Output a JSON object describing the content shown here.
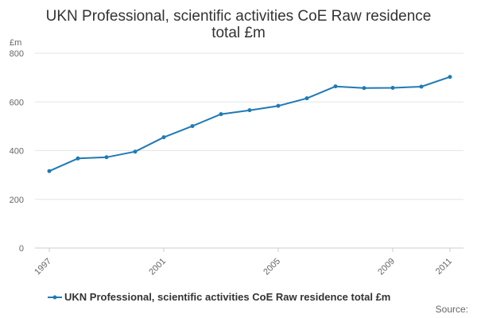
{
  "chart_data": {
    "type": "line",
    "title": "UKN Professional, scientific activities CoE Raw residence total £m",
    "title_lines": [
      "UKN Professional, scientific activities CoE Raw residence",
      "total £m"
    ],
    "y_unit": "£m",
    "xlabel": "",
    "ylabel": "",
    "ylim": [
      0,
      800
    ],
    "yticks": [
      0,
      200,
      400,
      600,
      800
    ],
    "xlim": [
      1997,
      2011
    ],
    "xticks": [
      1997,
      2001,
      2005,
      2009,
      2011
    ],
    "x": [
      1997,
      1998,
      1999,
      2000,
      2001,
      2002,
      2003,
      2004,
      2005,
      2006,
      2007,
      2008,
      2009,
      2010,
      2011
    ],
    "series": [
      {
        "name": "UKN Professional, scientific activities CoE Raw residence total £m",
        "color": "#1f7ab5",
        "values": [
          316,
          368,
          373,
          396,
          455,
          501,
          550,
          566,
          584,
          615,
          664,
          657,
          658,
          663,
          703
        ]
      }
    ],
    "grid": "horizontal",
    "legend_position": "bottom",
    "source_label": "Source:"
  }
}
